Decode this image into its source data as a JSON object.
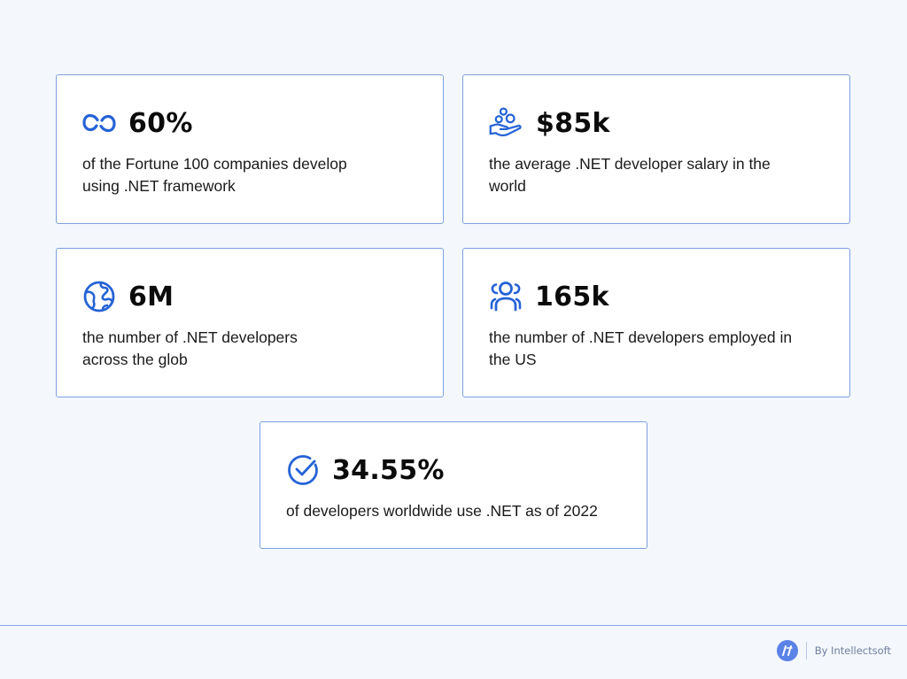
{
  "accent_color": "#2563d6",
  "border_color": "#7ea0e0",
  "background_color": "#f4f7fc",
  "stats": [
    {
      "icon": "link-icon",
      "value": "60%",
      "lines": [
        "of the Fortune 100 companies develop",
        "using .NET framework"
      ]
    },
    {
      "icon": "hand-coins-icon",
      "value": "$85k",
      "lines": [
        "the average  .NET developer salary in the",
        "world"
      ]
    },
    {
      "icon": "globe-icon",
      "value": "6M",
      "lines": [
        "the number of .NET developers",
        "across the glob"
      ]
    },
    {
      "icon": "users-icon",
      "value": "165k",
      "lines": [
        "the number of .NET developers employed in",
        "the US"
      ]
    },
    {
      "icon": "check-circle-icon",
      "value": "34.55%",
      "lines": [
        "of developers worldwide use .NET as of 2022"
      ]
    }
  ],
  "footer": {
    "brand_text": "By Intellectsoft",
    "logo_icon": "intellectsoft-logo-icon"
  }
}
